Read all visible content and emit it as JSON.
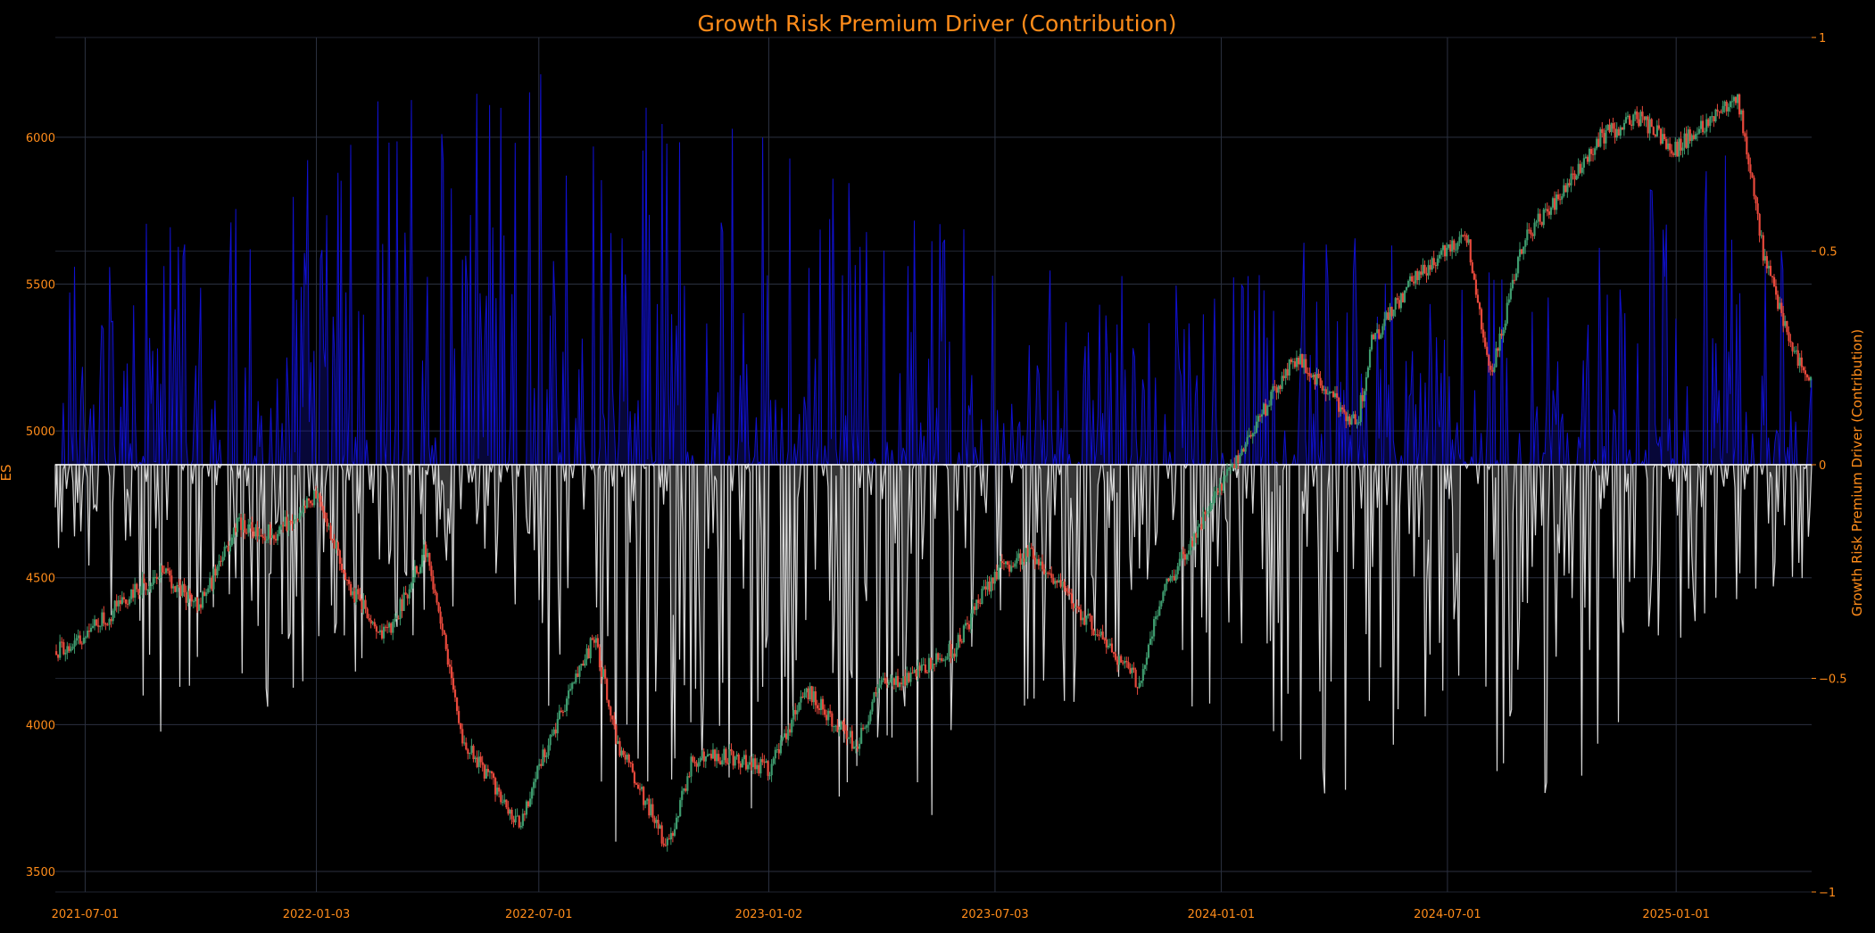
{
  "chart_data": {
    "type": "line",
    "title": "Growth Risk Premium Driver (Contribution)",
    "y_left_label": "ES",
    "y_right_label": "Growth Risk Premium Driver (Contribution)",
    "x_tick_labels": [
      "2021-07-01",
      "2022-01-03",
      "2022-07-01",
      "2023-01-02",
      "2023-07-03",
      "2024-01-01",
      "2024-07-01",
      "2025-01-01"
    ],
    "y_left_ticks": [
      "3500",
      "4000",
      "4500",
      "5000",
      "5500",
      "6000"
    ],
    "y_right_ticks": [
      "−1",
      "−0.5",
      "0",
      "0.5",
      "1"
    ],
    "y_left_range": [
      3430,
      6340
    ],
    "y_right_range": [
      -1.0,
      1.0
    ],
    "x_range": [
      "2021-06-07",
      "2025-04-20"
    ],
    "grid": true,
    "colors": {
      "up": "#3e9b6e",
      "down": "#e8493c",
      "positive_contribution": "#1010d0",
      "negative_contribution": "#d8d8d8",
      "text": "#ff8c1a"
    },
    "series": [
      {
        "name": "ES",
        "style": "candlestick",
        "x": [
          "2021-06-07",
          "2021-07-01",
          "2021-08-01",
          "2021-09-01",
          "2021-10-01",
          "2021-11-01",
          "2021-12-01",
          "2022-01-03",
          "2022-02-01",
          "2022-03-01",
          "2022-04-01",
          "2022-05-01",
          "2022-06-01",
          "2022-06-16",
          "2022-07-01",
          "2022-08-15",
          "2022-09-01",
          "2022-10-13",
          "2022-11-01",
          "2022-12-01",
          "2023-01-02",
          "2023-02-01",
          "2023-03-13",
          "2023-04-01",
          "2023-05-01",
          "2023-06-01",
          "2023-07-03",
          "2023-08-01",
          "2023-09-01",
          "2023-10-27",
          "2023-11-15",
          "2024-01-01",
          "2024-02-01",
          "2024-03-01",
          "2024-04-19",
          "2024-05-01",
          "2024-06-01",
          "2024-07-16",
          "2024-08-05",
          "2024-09-01",
          "2024-10-01",
          "2024-11-01",
          "2024-12-01",
          "2025-01-01",
          "2025-02-19",
          "2025-03-13",
          "2025-04-07",
          "2025-04-20"
        ],
        "y": [
          4250,
          4300,
          4420,
          4520,
          4400,
          4680,
          4650,
          4780,
          4450,
          4300,
          4600,
          3950,
          3760,
          3660,
          3860,
          4300,
          3950,
          3580,
          3880,
          3890,
          3850,
          4120,
          3930,
          4130,
          4170,
          4260,
          4520,
          4590,
          4430,
          4140,
          4450,
          4810,
          5050,
          5250,
          5020,
          5300,
          5500,
          5680,
          5180,
          5660,
          5800,
          6000,
          6070,
          5960,
          6150,
          5580,
          5260,
          5150
        ]
      },
      {
        "name": "Growth Risk Premium Driver (Contribution)",
        "style": "area",
        "note": "positive values drawn blue, negative values drawn light gray, both on the right axis",
        "x": [
          "2021-06-15",
          "2021-09-10",
          "2022-01-15",
          "2022-06-16",
          "2022-09-01",
          "2022-10-20",
          "2023-02-01",
          "2023-04-01",
          "2023-08-01",
          "2024-01-15",
          "2024-04-01",
          "2024-07-01",
          "2024-09-15",
          "2025-02-01",
          "2025-04-20"
        ],
        "y_positive_peaks": [
          0.48,
          0.62,
          0.85,
          1.0,
          0.91,
          0.9,
          0.7,
          0.68,
          0.48,
          0.45,
          0.58,
          0.5,
          0.45,
          0.9,
          0.33
        ],
        "y_negative_troughs": [
          -0.25,
          -0.78,
          -0.5,
          -0.45,
          -0.94,
          -0.88,
          -0.78,
          -0.95,
          -0.72,
          -0.6,
          -0.82,
          -0.6,
          -0.85,
          -0.35,
          -0.3
        ]
      }
    ]
  }
}
